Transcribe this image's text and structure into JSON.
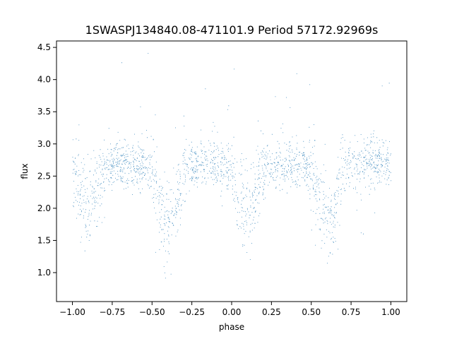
{
  "chart_data": {
    "type": "scatter",
    "title": "1SWASPJ134840.08-471101.9 Period 57172.92969s",
    "xlabel": "phase",
    "ylabel": "flux",
    "xlim": [
      -1.1,
      1.1
    ],
    "ylim": [
      0.55,
      4.6
    ],
    "xticks": [
      -1.0,
      -0.75,
      -0.5,
      -0.25,
      0.0,
      0.25,
      0.5,
      0.75,
      1.0
    ],
    "xtick_labels": [
      "−1.00",
      "−0.75",
      "−0.50",
      "−0.25",
      "0.00",
      "0.25",
      "0.50",
      "0.75",
      "1.00"
    ],
    "yticks": [
      1.0,
      1.5,
      2.0,
      2.5,
      3.0,
      3.5,
      4.0,
      4.5
    ],
    "ytick_labels": [
      "1.0",
      "1.5",
      "2.0",
      "2.5",
      "3.0",
      "3.5",
      "4.0",
      "4.5"
    ],
    "grid": false,
    "point_color": "#1f77b4",
    "series": [
      {
        "phase_range": [
          -1.0,
          1.0
        ],
        "baseline_flux": 2.7,
        "scatter_sigma": 0.18,
        "dips": [
          {
            "phase": -0.9,
            "min_flux": 1.9
          },
          {
            "phase": -0.4,
            "min_flux": 1.6
          },
          {
            "phase": 0.1,
            "min_flux": 1.9
          },
          {
            "phase": 0.6,
            "min_flux": 1.6
          }
        ],
        "point_count": 20000
      }
    ]
  }
}
